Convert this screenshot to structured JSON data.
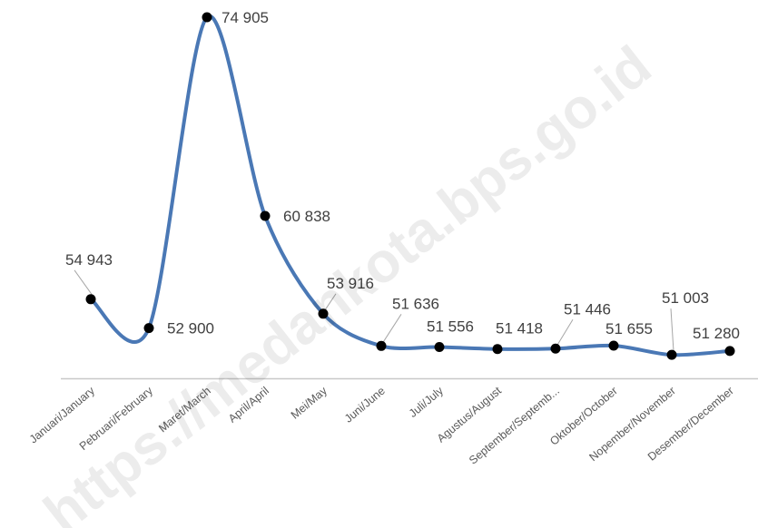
{
  "chart_data": {
    "type": "line",
    "title": "",
    "xlabel": "",
    "ylabel": "",
    "categories": [
      "Januari/January",
      "Pebruari/February",
      "Maret/March",
      "April/April",
      "Mei/May",
      "Juni/June",
      "Juli/July",
      "Agustus/August",
      "September/Septemb...",
      "Oktober/October",
      "Nopember/November",
      "Desember/December"
    ],
    "series": [
      {
        "values": [
          54943,
          52900,
          74905,
          60838,
          53916,
          51636,
          51556,
          51418,
          51446,
          51655,
          51003,
          51280
        ],
        "labels": [
          "54 943",
          "52 900",
          "74 905",
          "60 838",
          "53 916",
          "51 636",
          "51 556",
          "51 418",
          "51 446",
          "51 655",
          "51 003",
          "51 280"
        ],
        "color": "#4a78b5"
      }
    ],
    "ylim": [
      49600,
      74905
    ],
    "grid": false,
    "legend": "none",
    "smooth": true,
    "markers": true
  },
  "watermark": "https://medankota.bps.go.id"
}
